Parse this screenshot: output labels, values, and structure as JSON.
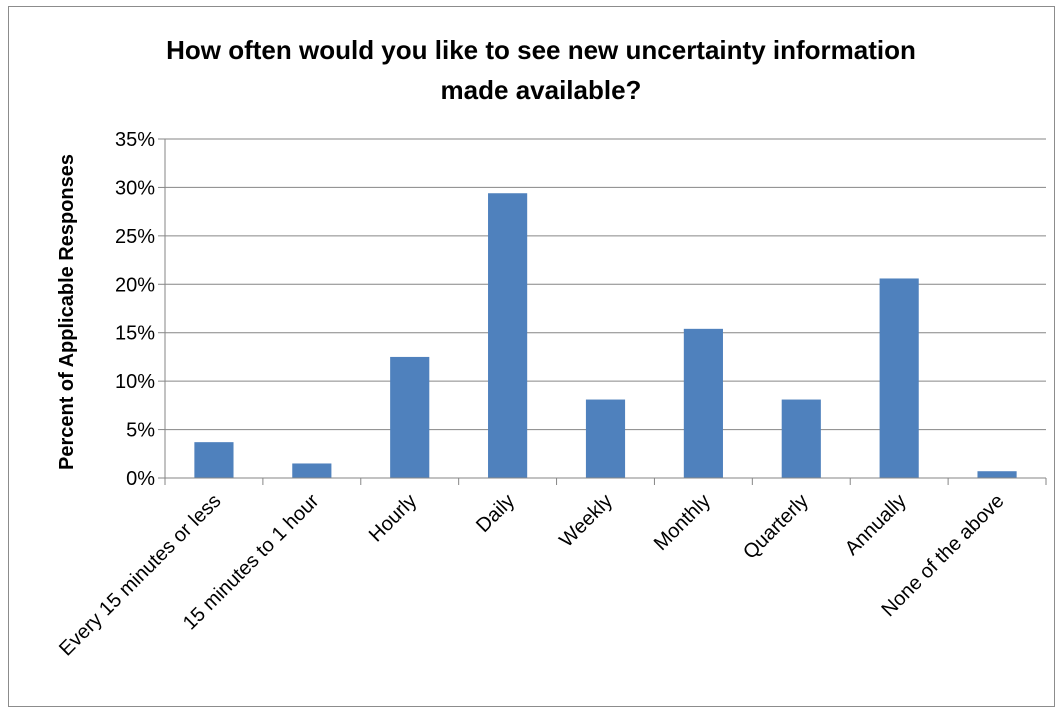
{
  "chart_data": {
    "type": "bar",
    "title_lines": [
      "How often would you like to see new uncertainty information",
      "made available?"
    ],
    "ylabel": "Percent of Applicable Responses",
    "xlabel": "",
    "categories": [
      "Every 15 minutes or less",
      "15 minutes to 1 hour",
      "Hourly",
      "Daily",
      "Weekly",
      "Monthly",
      "Quarterly",
      "Annually",
      "None of the above"
    ],
    "values": [
      3.7,
      1.5,
      12.5,
      29.4,
      8.1,
      15.4,
      8.1,
      20.6,
      0.7
    ],
    "value_unit": "%",
    "ylim": [
      0,
      35
    ],
    "yticks": [
      "0%",
      "5%",
      "10%",
      "15%",
      "20%",
      "25%",
      "30%",
      "35%"
    ],
    "ytick_values": [
      0,
      5,
      10,
      15,
      20,
      25,
      30,
      35
    ],
    "grid": true,
    "legend": "none",
    "bar_color": "#4f81bd",
    "grid_color": "#868686"
  }
}
